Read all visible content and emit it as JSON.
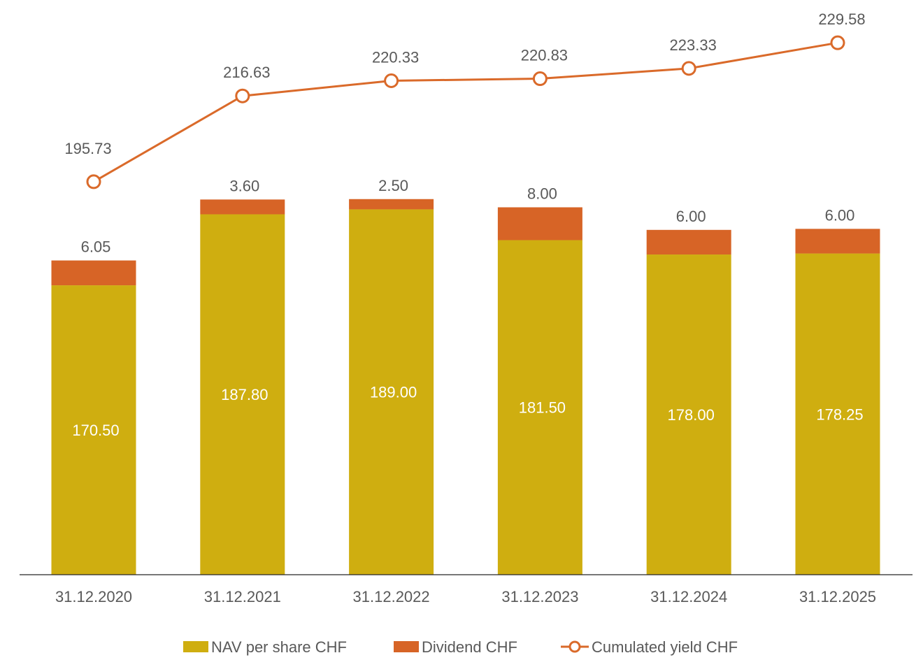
{
  "chart_data": {
    "type": "bar",
    "title": "",
    "xlabel": "",
    "ylabel": "",
    "ylim": [
      100,
      240
    ],
    "grid": false,
    "legend_position": "bottom",
    "categories": [
      "31.12.2020",
      "31.12.2021",
      "31.12.2022",
      "31.12.2023",
      "31.12.2024",
      "31.12.2025"
    ],
    "series": [
      {
        "name": "NAV per share CHF",
        "kind": "stacked-bar",
        "color": "#CFAE10",
        "values": [
          170.5,
          187.8,
          189.0,
          181.5,
          178.0,
          178.25
        ],
        "labels": [
          "170.50",
          "187.80",
          "189.00",
          "181.50",
          "178.00",
          "178.25"
        ]
      },
      {
        "name": "Dividend CHF",
        "kind": "stacked-bar",
        "color": "#D76426",
        "values": [
          6.05,
          3.6,
          2.5,
          8.0,
          6.0,
          6.0
        ],
        "labels": [
          "6.05",
          "3.60",
          "2.50",
          "8.00",
          "6.00",
          "6.00"
        ]
      },
      {
        "name": "Cumulated yield CHF",
        "kind": "line",
        "color": "#DA6A2A",
        "values": [
          195.73,
          216.63,
          220.33,
          220.83,
          223.33,
          229.58
        ],
        "labels": [
          "195.73",
          "216.63",
          "220.33",
          "220.83",
          "223.33",
          "229.58"
        ]
      }
    ]
  }
}
